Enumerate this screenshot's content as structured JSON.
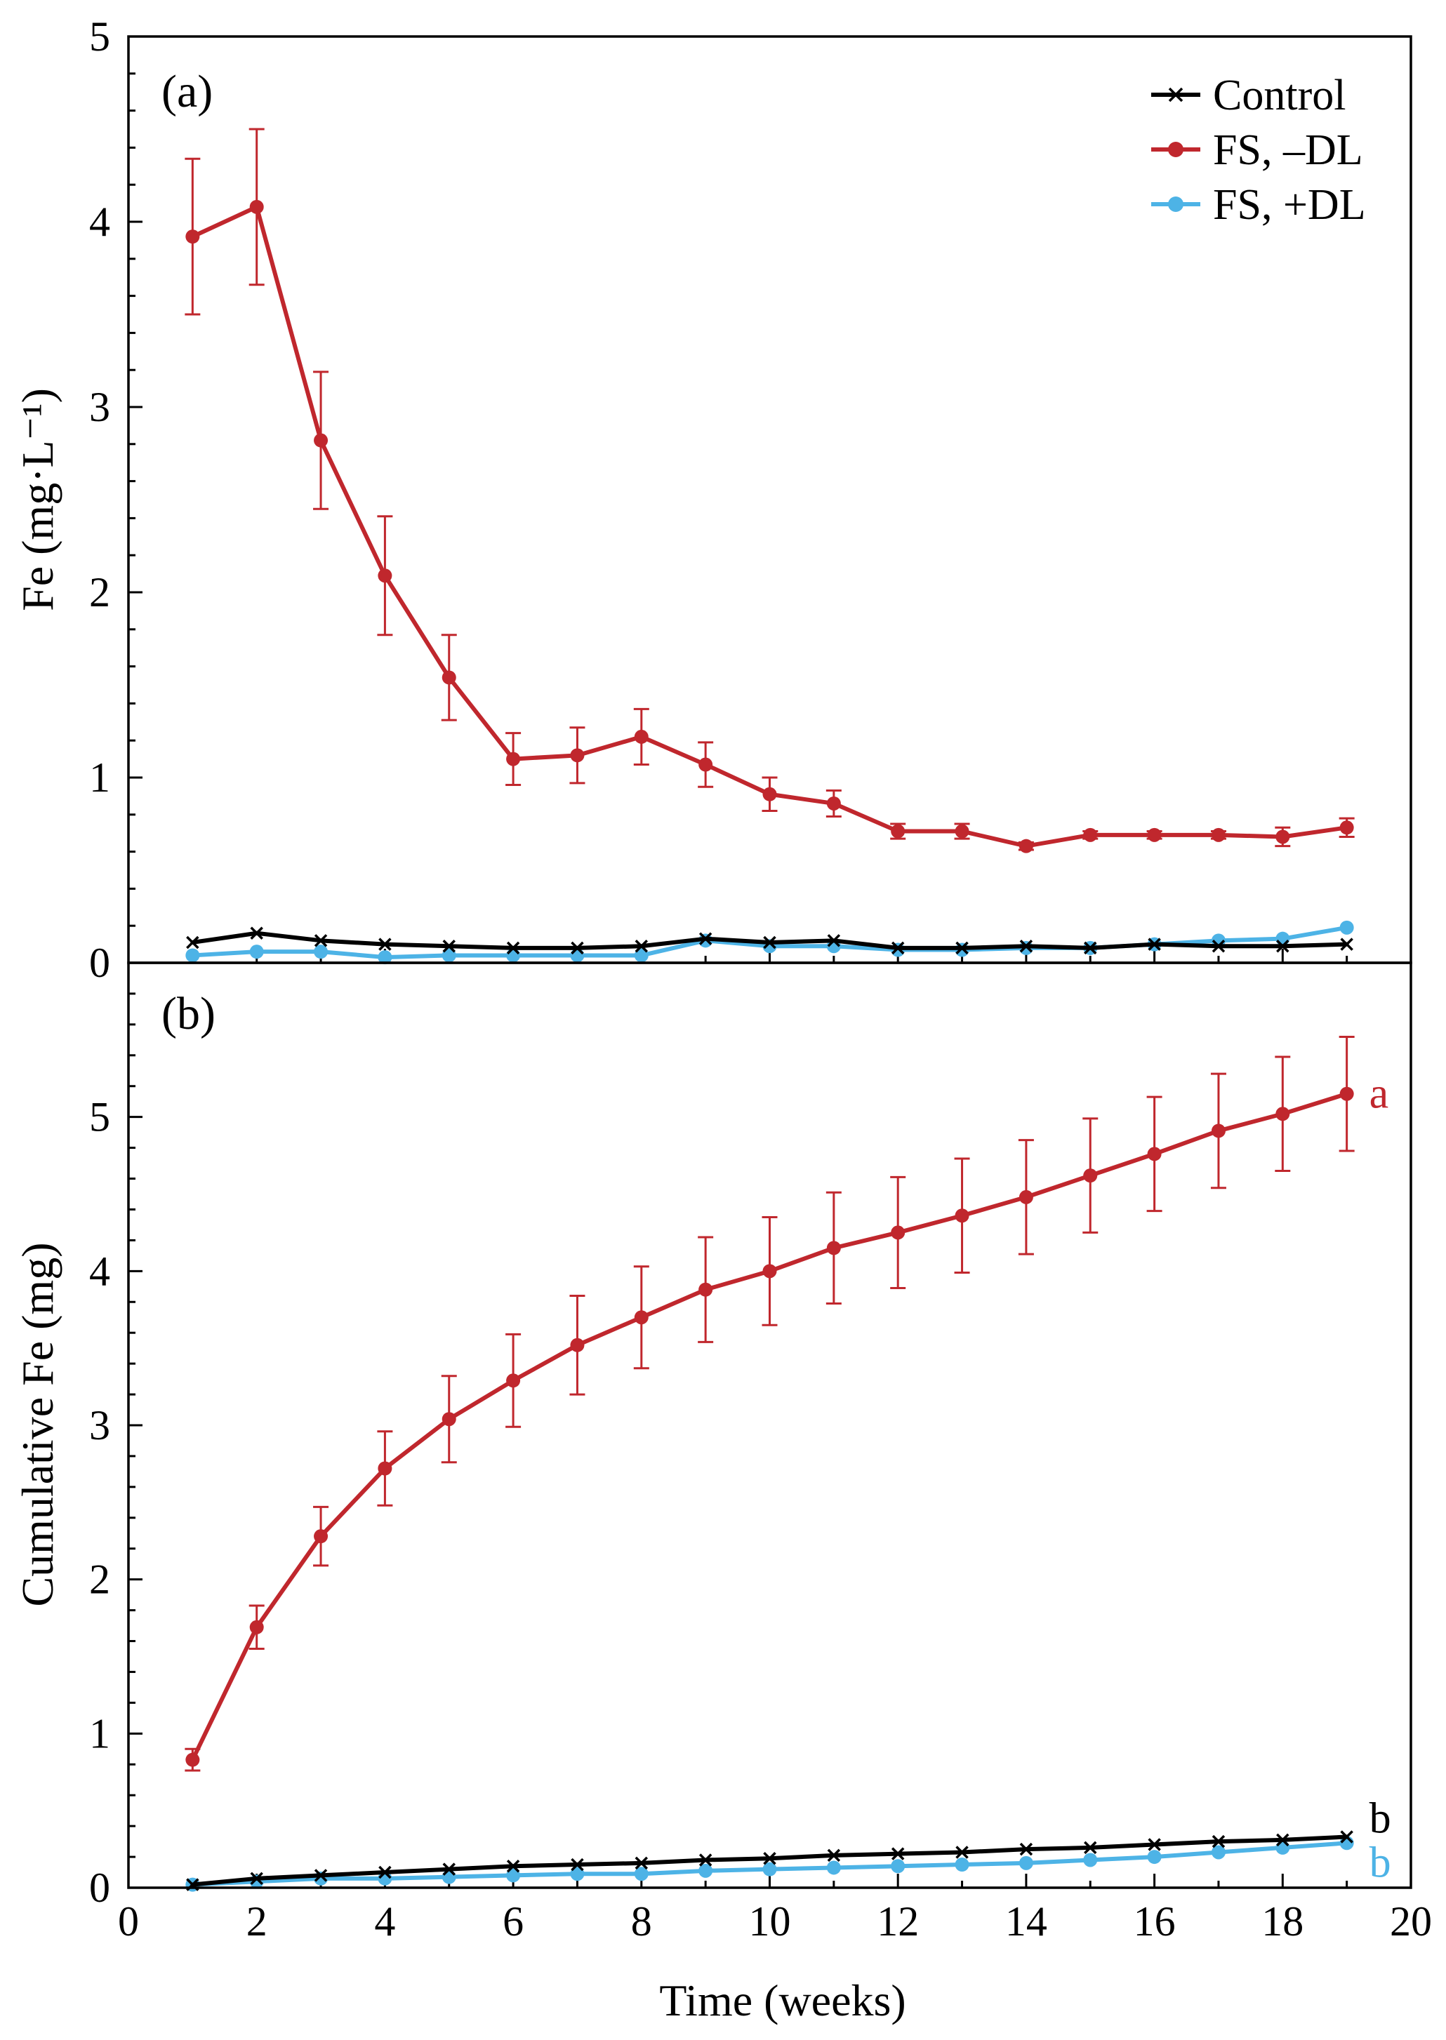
{
  "chart_data": [
    {
      "type": "line",
      "panel_label": "(a)",
      "xlabel": "Time (weeks)",
      "ylabel": "Fe (mg·L⁻¹)",
      "xlim": [
        0,
        20
      ],
      "ylim": [
        0,
        5
      ],
      "yticks": [
        0,
        1,
        2,
        3,
        4,
        5
      ],
      "y_minor_step": 0.2,
      "legend_position": "top-right",
      "x": [
        1,
        2,
        3,
        4,
        5,
        6,
        7,
        8,
        9,
        10,
        11,
        12,
        13,
        14,
        15,
        16,
        17,
        18,
        19
      ],
      "series": [
        {
          "name": "Control",
          "color": "#000000",
          "marker": "x",
          "values": [
            0.11,
            0.16,
            0.12,
            0.1,
            0.09,
            0.08,
            0.08,
            0.09,
            0.13,
            0.11,
            0.12,
            0.08,
            0.08,
            0.09,
            0.08,
            0.1,
            0.09,
            0.09,
            0.1
          ]
        },
        {
          "name": "FS, –DL",
          "color": "#c0272d",
          "marker": "circle",
          "values": [
            3.92,
            4.08,
            2.82,
            2.09,
            1.54,
            1.1,
            1.12,
            1.22,
            1.07,
            0.91,
            0.86,
            0.71,
            0.71,
            0.63,
            0.69,
            0.69,
            0.69,
            0.68,
            0.73
          ],
          "errors": [
            0.42,
            0.42,
            0.37,
            0.32,
            0.23,
            0.14,
            0.15,
            0.15,
            0.12,
            0.09,
            0.07,
            0.04,
            0.04,
            0.02,
            0.02,
            0.02,
            0.02,
            0.05,
            0.05
          ]
        },
        {
          "name": "FS, +DL",
          "color": "#4db3e6",
          "marker": "circle",
          "values": [
            0.04,
            0.06,
            0.06,
            0.03,
            0.04,
            0.04,
            0.04,
            0.04,
            0.12,
            0.09,
            0.09,
            0.07,
            0.07,
            0.08,
            0.08,
            0.1,
            0.12,
            0.13,
            0.19
          ]
        }
      ]
    },
    {
      "type": "line",
      "panel_label": "(b)",
      "xlabel": "Time (weeks)",
      "ylabel": "Cumulative Fe (mg)",
      "xlim": [
        0,
        20
      ],
      "ylim": [
        0,
        6
      ],
      "yticks": [
        0,
        1,
        2,
        3,
        4,
        5
      ],
      "y_minor_step": 0.2,
      "xticks": [
        0,
        2,
        4,
        6,
        8,
        10,
        12,
        14,
        16,
        18,
        20
      ],
      "x": [
        1,
        2,
        3,
        4,
        5,
        6,
        7,
        8,
        9,
        10,
        11,
        12,
        13,
        14,
        15,
        16,
        17,
        18,
        19
      ],
      "series": [
        {
          "name": "Control",
          "color": "#000000",
          "marker": "x",
          "values": [
            0.02,
            0.06,
            0.08,
            0.1,
            0.12,
            0.14,
            0.15,
            0.16,
            0.18,
            0.19,
            0.21,
            0.22,
            0.23,
            0.25,
            0.26,
            0.28,
            0.3,
            0.31,
            0.33
          ],
          "letter": "b"
        },
        {
          "name": "FS, –DL",
          "color": "#c0272d",
          "marker": "circle",
          "values": [
            0.83,
            1.69,
            2.28,
            2.72,
            3.04,
            3.29,
            3.52,
            3.7,
            3.88,
            4.0,
            4.15,
            4.25,
            4.36,
            4.48,
            4.62,
            4.76,
            4.91,
            5.02,
            5.15
          ],
          "errors": [
            0.07,
            0.14,
            0.19,
            0.24,
            0.28,
            0.3,
            0.32,
            0.33,
            0.34,
            0.35,
            0.36,
            0.36,
            0.37,
            0.37,
            0.37,
            0.37,
            0.37,
            0.37,
            0.37
          ],
          "letter": "a"
        },
        {
          "name": "FS, +DL",
          "color": "#4db3e6",
          "marker": "circle",
          "values": [
            0.02,
            0.04,
            0.06,
            0.06,
            0.07,
            0.08,
            0.09,
            0.09,
            0.11,
            0.12,
            0.13,
            0.14,
            0.15,
            0.16,
            0.18,
            0.2,
            0.23,
            0.26,
            0.29
          ],
          "letter": "b"
        }
      ]
    }
  ]
}
